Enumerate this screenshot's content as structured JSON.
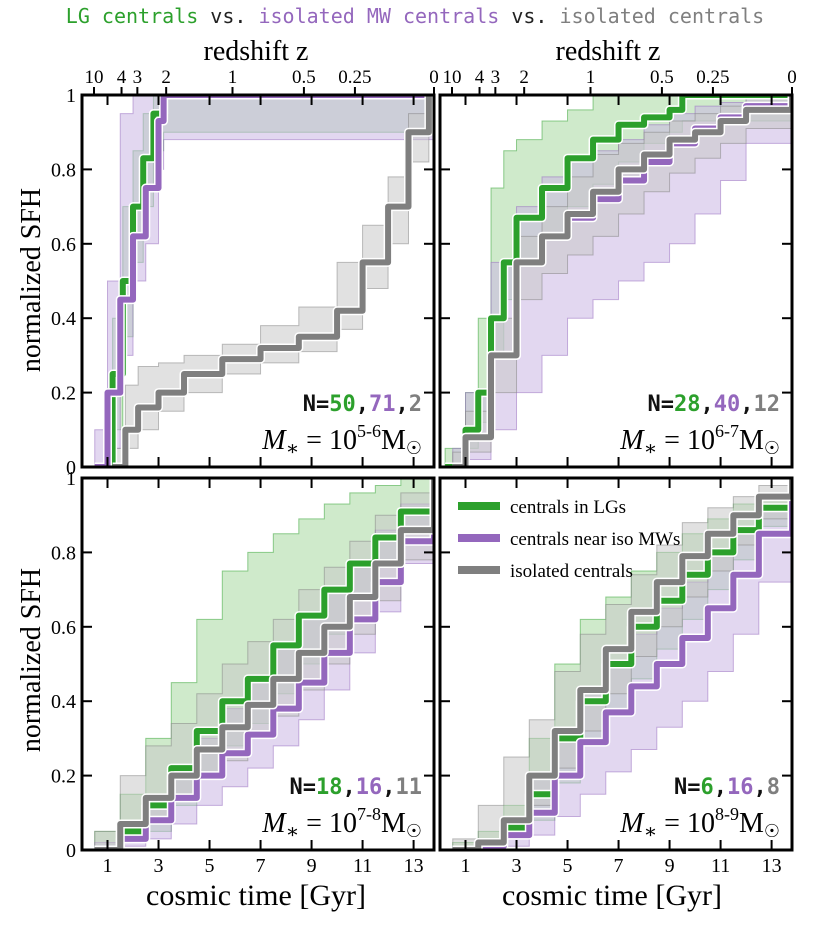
{
  "figure_title": {
    "part1": "LG centrals",
    "sep1": " vs. ",
    "part2": "isolated MW centrals",
    "sep2": " vs. ",
    "part3": "isolated centrals"
  },
  "colors": {
    "lg": "#2ca02c",
    "mw": "#9467bd",
    "iso": "#7f7f7f",
    "lg_fill": "#a8d8a0",
    "mw_fill": "#cbb6e3",
    "iso_fill": "#c8c8c8"
  },
  "legend": [
    "centrals in LGs",
    "centrals near iso MWs",
    "isolated centrals"
  ],
  "shared_axes": {
    "xlabel": "cosmic time [Gyr]",
    "ylabel": "normalized SFH",
    "top_xlabel": "redshift z",
    "xlim": [
      0,
      13.8
    ],
    "ylim": [
      0,
      1.0
    ],
    "xticks": [
      1,
      3,
      5,
      7,
      9,
      11,
      13
    ],
    "yticks": [
      0,
      0.2,
      0.4,
      0.6,
      0.8,
      1
    ],
    "ytick_labels": [
      "0",
      "0.2",
      "0.4",
      "0.6",
      "0.8",
      "1"
    ],
    "top_ticks": [
      {
        "label": "10",
        "t": 0.47
      },
      {
        "label": "4",
        "t": 1.55
      },
      {
        "label": "3",
        "t": 2.17
      },
      {
        "label": "2",
        "t": 3.3
      },
      {
        "label": "1",
        "t": 5.9
      },
      {
        "label": "0.5",
        "t": 8.7
      },
      {
        "label": "0.25",
        "t": 10.7
      },
      {
        "label": "0",
        "t": 13.8
      }
    ]
  },
  "chart_data": [
    {
      "type": "line",
      "panel": "top-left",
      "n_label": "N=",
      "n_values": [
        "50",
        "71",
        "2"
      ],
      "mass_label": "M* = 10^(5-6) M☉",
      "series": [
        {
          "name": "centrals in LGs",
          "x": [
            0.7,
            1.2,
            1.6,
            2.0,
            2.4,
            2.8,
            3.2,
            13.8
          ],
          "y": [
            0.0,
            0.25,
            0.5,
            0.7,
            0.83,
            0.95,
            1.0,
            1.0
          ],
          "lo": [
            0.0,
            0.1,
            0.35,
            0.55,
            0.7,
            0.85,
            0.9,
            1.0
          ],
          "hi": [
            0.0,
            0.4,
            0.7,
            0.85,
            0.95,
            1.0,
            1.0,
            1.0
          ]
        },
        {
          "name": "centrals near iso MWs",
          "x": [
            0.5,
            1.0,
            1.5,
            2.0,
            2.5,
            3.0,
            3.2,
            13.8
          ],
          "y": [
            0.0,
            0.2,
            0.45,
            0.62,
            0.75,
            0.93,
            1.0,
            1.0
          ],
          "lo": [
            0.0,
            0.05,
            0.3,
            0.5,
            0.6,
            0.8,
            0.88,
            1.0
          ],
          "hi": [
            0.1,
            0.5,
            0.95,
            1.0,
            1.0,
            1.0,
            1.0,
            1.0
          ]
        },
        {
          "name": "isolated centrals",
          "x": [
            1.2,
            1.7,
            2.2,
            3.0,
            4.0,
            5.5,
            7.0,
            8.5,
            10.0,
            11.0,
            12.0,
            12.8,
            13.6
          ],
          "y": [
            0.0,
            0.1,
            0.16,
            0.2,
            0.25,
            0.29,
            0.32,
            0.35,
            0.42,
            0.55,
            0.7,
            0.9,
            1.0
          ],
          "lo": [
            0.0,
            0.05,
            0.1,
            0.15,
            0.2,
            0.25,
            0.28,
            0.31,
            0.37,
            0.48,
            0.6,
            0.82,
            1.0
          ],
          "hi": [
            0.05,
            0.22,
            0.27,
            0.28,
            0.3,
            0.33,
            0.38,
            0.43,
            0.55,
            0.65,
            0.78,
            0.95,
            1.0
          ]
        }
      ]
    },
    {
      "type": "line",
      "panel": "top-right",
      "n_label": "N=",
      "n_values": [
        "28",
        "40",
        "12"
      ],
      "mass_label": "M* = 10^(6-7) M☉",
      "series": [
        {
          "name": "centrals in LGs",
          "x": [
            0.2,
            1.0,
            1.5,
            2.0,
            2.5,
            3.0,
            4.0,
            5.0,
            6.0,
            7.0,
            8.0,
            9.0,
            9.5,
            13.8
          ],
          "y": [
            0.0,
            0.1,
            0.2,
            0.4,
            0.55,
            0.67,
            0.75,
            0.83,
            0.88,
            0.92,
            0.94,
            0.96,
            1.0,
            1.0
          ],
          "lo": [
            0.0,
            0.05,
            0.12,
            0.3,
            0.45,
            0.55,
            0.62,
            0.7,
            0.76,
            0.82,
            0.87,
            0.9,
            0.93,
            1.0
          ],
          "hi": [
            0.05,
            0.2,
            0.4,
            0.75,
            0.85,
            0.88,
            0.93,
            0.96,
            1.0,
            1.0,
            1.0,
            1.0,
            1.0,
            1.0
          ]
        },
        {
          "name": "centrals near iso MWs",
          "x": [
            0.5,
            1.0,
            2.0,
            3.0,
            4.0,
            5.0,
            6.0,
            7.0,
            8.0,
            9.0,
            10.0,
            11.0,
            12.0,
            13.8
          ],
          "y": [
            0.0,
            0.08,
            0.3,
            0.55,
            0.62,
            0.67,
            0.72,
            0.77,
            0.82,
            0.87,
            0.91,
            0.94,
            0.97,
            1.0
          ],
          "lo": [
            0.0,
            0.02,
            0.1,
            0.2,
            0.3,
            0.4,
            0.45,
            0.5,
            0.55,
            0.6,
            0.68,
            0.77,
            0.87,
            1.0
          ],
          "hi": [
            0.05,
            0.2,
            0.55,
            0.7,
            0.78,
            0.82,
            0.85,
            0.88,
            0.92,
            0.95,
            0.97,
            0.98,
            1.0,
            1.0
          ]
        },
        {
          "name": "isolated centrals",
          "x": [
            0.5,
            1.0,
            2.0,
            3.0,
            4.0,
            5.0,
            6.0,
            7.0,
            8.0,
            9.0,
            10.0,
            11.0,
            12.0,
            13.8
          ],
          "y": [
            0.0,
            0.08,
            0.3,
            0.55,
            0.62,
            0.68,
            0.74,
            0.8,
            0.84,
            0.88,
            0.9,
            0.93,
            0.96,
            1.0
          ],
          "lo": [
            0.0,
            0.04,
            0.2,
            0.45,
            0.52,
            0.57,
            0.62,
            0.68,
            0.74,
            0.79,
            0.83,
            0.87,
            0.91,
            1.0
          ],
          "hi": [
            0.04,
            0.15,
            0.4,
            0.62,
            0.7,
            0.78,
            0.84,
            0.87,
            0.9,
            0.93,
            0.95,
            0.97,
            0.99,
            1.0
          ]
        }
      ]
    },
    {
      "type": "line",
      "panel": "bottom-left",
      "n_label": "N=",
      "n_values": [
        "18",
        "16",
        "11"
      ],
      "mass_label": "M* = 10^(7-8) M☉",
      "series": [
        {
          "name": "centrals in LGs",
          "x": [
            0.5,
            1.5,
            2.5,
            3.5,
            4.5,
            5.5,
            6.5,
            7.5,
            8.5,
            9.5,
            10.5,
            11.5,
            12.5,
            13.8
          ],
          "y": [
            0.0,
            0.05,
            0.12,
            0.22,
            0.32,
            0.4,
            0.46,
            0.55,
            0.63,
            0.7,
            0.77,
            0.84,
            0.91,
            1.0
          ],
          "lo": [
            0.0,
            0.02,
            0.05,
            0.12,
            0.2,
            0.28,
            0.34,
            0.42,
            0.5,
            0.58,
            0.67,
            0.76,
            0.87,
            1.0
          ],
          "hi": [
            0.05,
            0.15,
            0.3,
            0.45,
            0.62,
            0.75,
            0.8,
            0.85,
            0.89,
            0.93,
            0.96,
            0.98,
            1.0,
            1.0
          ]
        },
        {
          "name": "centrals near iso MWs",
          "x": [
            0.5,
            1.5,
            2.5,
            3.5,
            4.5,
            5.5,
            6.5,
            7.5,
            8.5,
            9.5,
            10.5,
            11.5,
            12.5,
            13.8
          ],
          "y": [
            0.0,
            0.03,
            0.08,
            0.14,
            0.2,
            0.26,
            0.31,
            0.38,
            0.45,
            0.53,
            0.62,
            0.72,
            0.83,
            1.0
          ],
          "lo": [
            0.0,
            0.01,
            0.03,
            0.07,
            0.12,
            0.17,
            0.22,
            0.28,
            0.35,
            0.43,
            0.53,
            0.64,
            0.77,
            1.0
          ],
          "hi": [
            0.02,
            0.06,
            0.14,
            0.22,
            0.3,
            0.38,
            0.46,
            0.55,
            0.62,
            0.7,
            0.78,
            0.86,
            0.93,
            1.0
          ]
        },
        {
          "name": "isolated centrals",
          "x": [
            0.5,
            1.5,
            2.5,
            3.5,
            4.5,
            5.5,
            6.5,
            7.5,
            8.5,
            9.5,
            10.5,
            11.5,
            12.5,
            13.8
          ],
          "y": [
            0.0,
            0.07,
            0.14,
            0.2,
            0.27,
            0.33,
            0.39,
            0.46,
            0.53,
            0.6,
            0.68,
            0.77,
            0.86,
            1.0
          ],
          "lo": [
            0.0,
            0.03,
            0.08,
            0.13,
            0.19,
            0.24,
            0.3,
            0.36,
            0.43,
            0.5,
            0.58,
            0.67,
            0.78,
            1.0
          ],
          "hi": [
            0.05,
            0.2,
            0.28,
            0.34,
            0.42,
            0.5,
            0.56,
            0.62,
            0.7,
            0.76,
            0.83,
            0.9,
            0.96,
            1.0
          ]
        }
      ]
    },
    {
      "type": "line",
      "panel": "bottom-right",
      "n_label": "N=",
      "n_values": [
        "6",
        "16",
        "8"
      ],
      "mass_label": "M* = 10^(8-9) M☉",
      "series": [
        {
          "name": "centrals in LGs",
          "x": [
            0.5,
            1.5,
            2.5,
            3.5,
            4.5,
            5.5,
            6.5,
            7.5,
            8.5,
            9.5,
            10.5,
            11.5,
            12.5,
            13.8
          ],
          "y": [
            0.0,
            0.02,
            0.06,
            0.15,
            0.3,
            0.4,
            0.5,
            0.6,
            0.67,
            0.74,
            0.8,
            0.86,
            0.92,
            1.0
          ],
          "lo": [
            0.0,
            0.01,
            0.03,
            0.08,
            0.18,
            0.28,
            0.38,
            0.46,
            0.54,
            0.62,
            0.7,
            0.78,
            0.87,
            1.0
          ],
          "hi": [
            0.02,
            0.05,
            0.12,
            0.3,
            0.5,
            0.62,
            0.68,
            0.75,
            0.8,
            0.85,
            0.89,
            0.93,
            0.96,
            1.0
          ]
        },
        {
          "name": "centrals near iso MWs",
          "x": [
            0.5,
            1.5,
            2.5,
            3.5,
            4.5,
            5.5,
            6.5,
            7.5,
            8.5,
            9.5,
            10.5,
            11.5,
            12.5,
            13.8
          ],
          "y": [
            0.0,
            0.01,
            0.04,
            0.1,
            0.2,
            0.29,
            0.37,
            0.44,
            0.5,
            0.57,
            0.65,
            0.74,
            0.85,
            1.0
          ],
          "lo": [
            0.0,
            0.0,
            0.01,
            0.04,
            0.09,
            0.15,
            0.21,
            0.27,
            0.33,
            0.4,
            0.48,
            0.58,
            0.72,
            1.0
          ],
          "hi": [
            0.01,
            0.03,
            0.09,
            0.2,
            0.32,
            0.42,
            0.5,
            0.58,
            0.65,
            0.72,
            0.79,
            0.86,
            0.92,
            1.0
          ]
        },
        {
          "name": "isolated centrals",
          "x": [
            0.5,
            1.5,
            2.5,
            3.5,
            4.5,
            5.5,
            6.5,
            7.5,
            8.5,
            9.5,
            10.5,
            11.5,
            12.5,
            13.8
          ],
          "y": [
            0.0,
            0.02,
            0.08,
            0.2,
            0.32,
            0.43,
            0.54,
            0.64,
            0.72,
            0.79,
            0.85,
            0.9,
            0.95,
            1.0
          ],
          "lo": [
            0.0,
            0.01,
            0.04,
            0.12,
            0.22,
            0.32,
            0.42,
            0.52,
            0.6,
            0.68,
            0.75,
            0.82,
            0.89,
            1.0
          ],
          "hi": [
            0.03,
            0.12,
            0.25,
            0.35,
            0.48,
            0.58,
            0.66,
            0.74,
            0.82,
            0.88,
            0.92,
            0.95,
            0.98,
            1.0
          ]
        }
      ]
    }
  ]
}
